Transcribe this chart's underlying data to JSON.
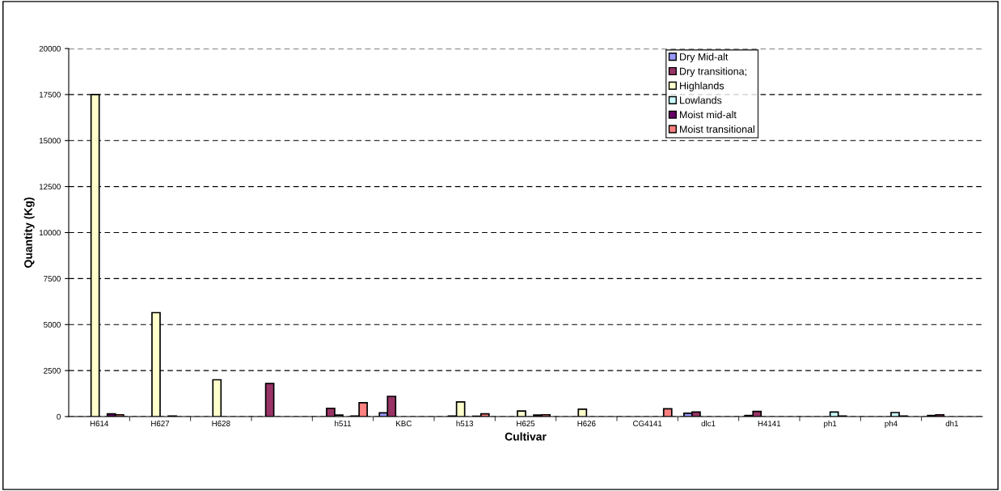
{
  "chart_data": {
    "type": "bar",
    "xlabel": "Cultivar",
    "ylabel": "Quantity (Kg)",
    "categories": [
      "H614",
      "H627",
      "H628",
      null,
      "h511",
      "KBC",
      "h513",
      "H625",
      "H626",
      "CG4141",
      "dlc1",
      "H4141",
      "ph1",
      "ph4",
      "dh1"
    ],
    "series": [
      {
        "name": "Dry Mid-alt",
        "color": "#9999ff",
        "values": [
          null,
          null,
          null,
          null,
          null,
          200,
          null,
          null,
          null,
          null,
          180,
          60,
          null,
          null,
          60
        ]
      },
      {
        "name": "Dry transitiona;",
        "color": "#993366",
        "values": [
          null,
          null,
          null,
          1800,
          450,
          1100,
          30,
          null,
          null,
          null,
          250,
          280,
          null,
          null,
          100
        ]
      },
      {
        "name": "Highlands",
        "color": "#ffffcc",
        "values": [
          17500,
          5650,
          2000,
          null,
          80,
          null,
          800,
          300,
          400,
          null,
          null,
          null,
          null,
          null,
          null
        ]
      },
      {
        "name": "Lowlands",
        "color": "#ccffff",
        "values": [
          null,
          null,
          null,
          null,
          null,
          null,
          null,
          null,
          null,
          null,
          null,
          null,
          250,
          220,
          null
        ]
      },
      {
        "name": "Moist mid-alt",
        "color": "#660066",
        "values": [
          150,
          30,
          null,
          null,
          30,
          null,
          20,
          80,
          null,
          null,
          null,
          null,
          30,
          30,
          null
        ]
      },
      {
        "name": "Moist transitional",
        "color": "#ff8080",
        "values": [
          100,
          null,
          null,
          null,
          750,
          null,
          150,
          100,
          null,
          420,
          null,
          null,
          null,
          null,
          null
        ]
      }
    ],
    "ylim": [
      0,
      20000
    ],
    "yticks": [
      0,
      2500,
      5000,
      7500,
      10000,
      12500,
      15000,
      17500,
      20000
    ],
    "grid": "y",
    "legend": "top right"
  }
}
